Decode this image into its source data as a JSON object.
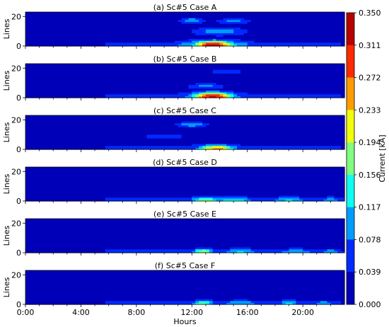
{
  "chart_data": {
    "type": "heatmap",
    "panels": [
      {
        "title": "(a) Sc#5 Case A",
        "hotspots": [
          {
            "t": 13.6,
            "l": 0.8,
            "st": 1.5,
            "sl": 3.0,
            "a": 1.0
          },
          {
            "t": 13.6,
            "l": 0.5,
            "st": 3.0,
            "sl": 4.0,
            "a": 0.45
          },
          {
            "t": 12.0,
            "l": 17.5,
            "st": 1.0,
            "sl": 2.0,
            "a": 0.3
          },
          {
            "t": 14.0,
            "l": 10.0,
            "st": 2.0,
            "sl": 3.0,
            "a": 0.3
          },
          {
            "t": 15.0,
            "l": 17.0,
            "st": 1.5,
            "sl": 2.0,
            "a": 0.25
          }
        ]
      },
      {
        "title": "(b) Sc#5 Case B",
        "hotspots": [
          {
            "t": 13.5,
            "l": 1.0,
            "st": 1.6,
            "sl": 3.0,
            "a": 0.92
          },
          {
            "t": 13.5,
            "l": 0.6,
            "st": 3.0,
            "sl": 4.0,
            "a": 0.35
          },
          {
            "t": 13.0,
            "l": 8.0,
            "st": 1.5,
            "sl": 2.0,
            "a": 0.25
          },
          {
            "t": 14.5,
            "l": 18.0,
            "st": 1.2,
            "sl": 2.0,
            "a": 0.22
          }
        ]
      },
      {
        "title": "(c) Sc#5 Case C",
        "hotspots": [
          {
            "t": 13.8,
            "l": 0.8,
            "st": 1.4,
            "sl": 2.5,
            "a": 0.72
          },
          {
            "t": 13.8,
            "l": 0.5,
            "st": 2.8,
            "sl": 3.5,
            "a": 0.3
          },
          {
            "t": 12.0,
            "l": 17.0,
            "st": 1.2,
            "sl": 2.0,
            "a": 0.3
          },
          {
            "t": 10.0,
            "l": 9.0,
            "st": 1.5,
            "sl": 2.0,
            "a": 0.22
          }
        ]
      },
      {
        "title": "(d) Sc#5 Case D",
        "hotspots": [
          {
            "t": 13.0,
            "l": 0.8,
            "st": 1.2,
            "sl": 2.5,
            "a": 0.5
          },
          {
            "t": 15.0,
            "l": 0.8,
            "st": 1.5,
            "sl": 2.5,
            "a": 0.4
          },
          {
            "t": 19.0,
            "l": 0.8,
            "st": 1.5,
            "sl": 2.5,
            "a": 0.35
          },
          {
            "t": 22.0,
            "l": 0.8,
            "st": 1.0,
            "sl": 2.5,
            "a": 0.3
          }
        ]
      },
      {
        "title": "(e) Sc#5 Case E",
        "hotspots": [
          {
            "t": 12.8,
            "l": 0.8,
            "st": 0.8,
            "sl": 2.5,
            "a": 0.55
          },
          {
            "t": 15.5,
            "l": 0.8,
            "st": 1.5,
            "sl": 2.5,
            "a": 0.35
          },
          {
            "t": 19.5,
            "l": 0.8,
            "st": 1.5,
            "sl": 2.5,
            "a": 0.32
          },
          {
            "t": 22.0,
            "l": 0.8,
            "st": 1.0,
            "sl": 2.5,
            "a": 0.28
          }
        ]
      },
      {
        "title": "(f) Sc#5 Case F",
        "hotspots": [
          {
            "t": 12.8,
            "l": 0.8,
            "st": 0.8,
            "sl": 2.5,
            "a": 0.5
          },
          {
            "t": 15.5,
            "l": 0.8,
            "st": 1.5,
            "sl": 2.5,
            "a": 0.33
          },
          {
            "t": 19.0,
            "l": 0.8,
            "st": 0.8,
            "sl": 2.5,
            "a": 0.4
          },
          {
            "t": 21.5,
            "l": 0.8,
            "st": 1.2,
            "sl": 2.5,
            "a": 0.28
          }
        ]
      }
    ],
    "x_ticks": [
      "0:00",
      "4:00",
      "8:00",
      "12:00",
      "16:00",
      "20:00"
    ],
    "x_tick_values": [
      0,
      4,
      8,
      12,
      16,
      20
    ],
    "x_range": [
      0,
      23
    ],
    "xlabel": "Hours",
    "y_ticks": [
      0,
      20
    ],
    "y_range": [
      0,
      23
    ],
    "ylabel": "Lines",
    "colorbar": {
      "label": "Current [kA]",
      "ticks": [
        "0.350",
        "0.311",
        "0.272",
        "0.233",
        "0.194",
        "0.156",
        "0.117",
        "0.078",
        "0.039",
        "0.000"
      ],
      "range": [
        0,
        0.35
      ],
      "colormap": "jet"
    }
  }
}
